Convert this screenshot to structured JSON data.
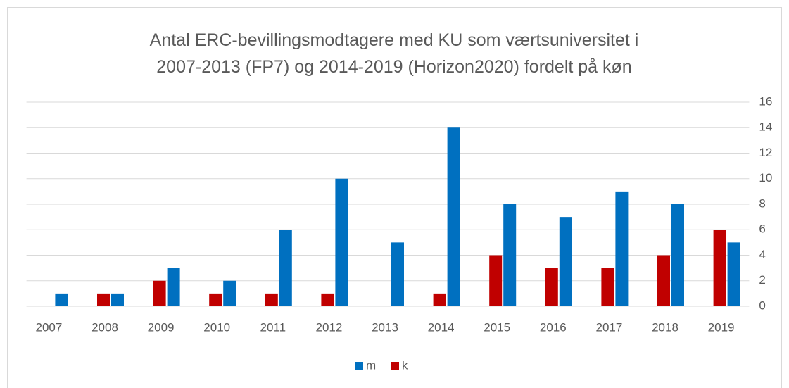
{
  "chart_data": {
    "type": "bar",
    "title": "Antal ERC-bevillingsmodtagere med KU som værtsuniversitet i 2007-2013 (FP7) og 2014-2019 (Horizon2020) fordelt på køn",
    "categories": [
      "2007",
      "2008",
      "2009",
      "2010",
      "2011",
      "2012",
      "2013",
      "2014",
      "2015",
      "2016",
      "2017",
      "2018",
      "2019"
    ],
    "series": [
      {
        "name": "m",
        "color": "#0070c0",
        "values": [
          1,
          1,
          3,
          2,
          6,
          10,
          5,
          14,
          8,
          7,
          9,
          8,
          5
        ]
      },
      {
        "name": "k",
        "color": "#c00000",
        "values": [
          0,
          1,
          2,
          1,
          1,
          1,
          0,
          1,
          4,
          3,
          3,
          4,
          6
        ]
      }
    ],
    "ylim": [
      0,
      16
    ],
    "yticks": [
      0,
      2,
      4,
      6,
      8,
      10,
      12,
      14,
      16
    ],
    "grid": true,
    "legend": "bottom"
  }
}
